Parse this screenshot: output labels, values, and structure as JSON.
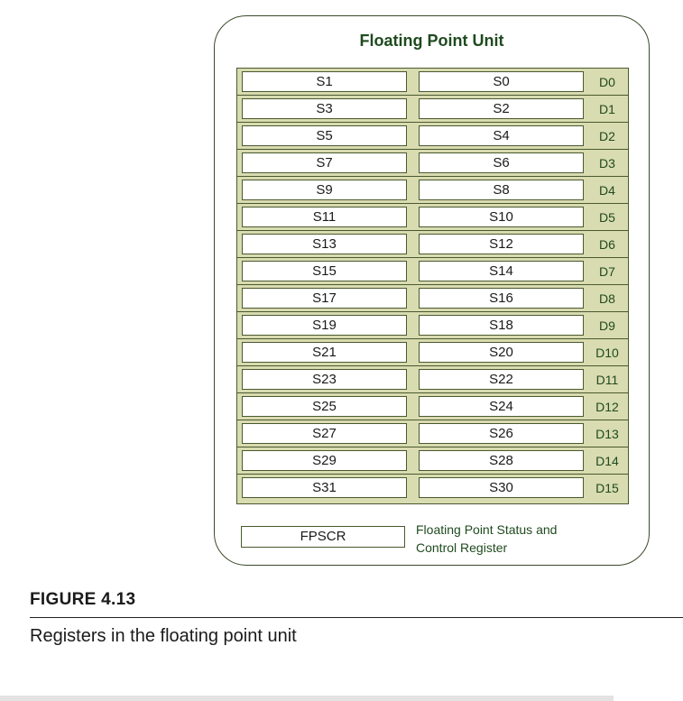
{
  "unit_title": "Floating Point Unit",
  "registers": [
    {
      "odd": "S1",
      "even": "S0",
      "double": "D0"
    },
    {
      "odd": "S3",
      "even": "S2",
      "double": "D1"
    },
    {
      "odd": "S5",
      "even": "S4",
      "double": "D2"
    },
    {
      "odd": "S7",
      "even": "S6",
      "double": "D3"
    },
    {
      "odd": "S9",
      "even": "S8",
      "double": "D4"
    },
    {
      "odd": "S11",
      "even": "S10",
      "double": "D5"
    },
    {
      "odd": "S13",
      "even": "S12",
      "double": "D6"
    },
    {
      "odd": "S15",
      "even": "S14",
      "double": "D7"
    },
    {
      "odd": "S17",
      "even": "S16",
      "double": "D8"
    },
    {
      "odd": "S19",
      "even": "S18",
      "double": "D9"
    },
    {
      "odd": "S21",
      "even": "S20",
      "double": "D10"
    },
    {
      "odd": "S23",
      "even": "S22",
      "double": "D11"
    },
    {
      "odd": "S25",
      "even": "S24",
      "double": "D12"
    },
    {
      "odd": "S27",
      "even": "S26",
      "double": "D13"
    },
    {
      "odd": "S29",
      "even": "S28",
      "double": "D14"
    },
    {
      "odd": "S31",
      "even": "S30",
      "double": "D15"
    }
  ],
  "fpscr": {
    "label": "FPSCR",
    "description_line1": "Floating Point Status and",
    "description_line2": "Control Register"
  },
  "figure": {
    "label": "FIGURE 4.13",
    "caption": "Registers in the floating point unit"
  },
  "colors": {
    "table_fill": "#d9dbb0",
    "border": "#4a5a2e",
    "text_green": "#1f4a1f"
  }
}
